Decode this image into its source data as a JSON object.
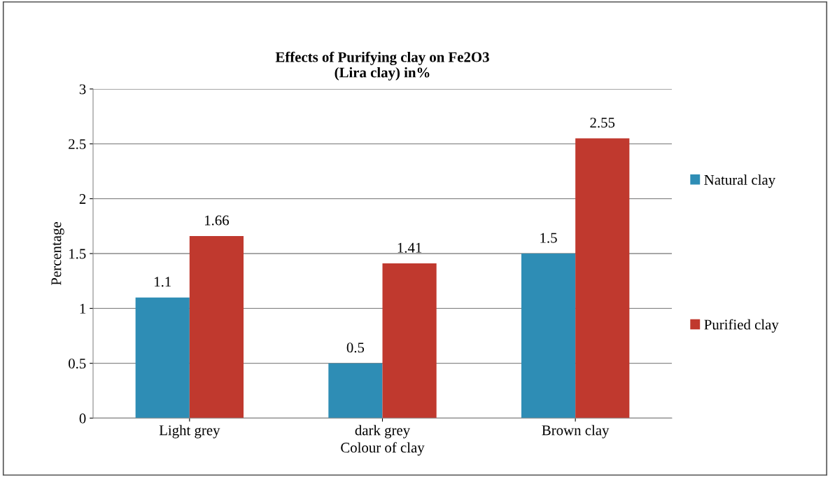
{
  "chart_data": {
    "type": "bar",
    "title": "Effects of Purifying clay on Fe2O3\n(Lira clay) in%",
    "xlabel": "Colour of clay",
    "ylabel": "Percentage",
    "categories": [
      "Light grey",
      "dark grey",
      "Brown clay"
    ],
    "series": [
      {
        "name": "Natural clay",
        "color": "#2e8db5",
        "values": [
          1.1,
          0.5,
          1.5
        ]
      },
      {
        "name": "Purified clay",
        "color": "#c0392e",
        "values": [
          1.66,
          1.41,
          2.55
        ]
      }
    ],
    "ylim": [
      0,
      3
    ],
    "yticks": [
      0,
      0.5,
      1,
      1.5,
      2,
      2.5,
      3
    ],
    "grid": "y",
    "legend": "right",
    "data_labels": true
  }
}
